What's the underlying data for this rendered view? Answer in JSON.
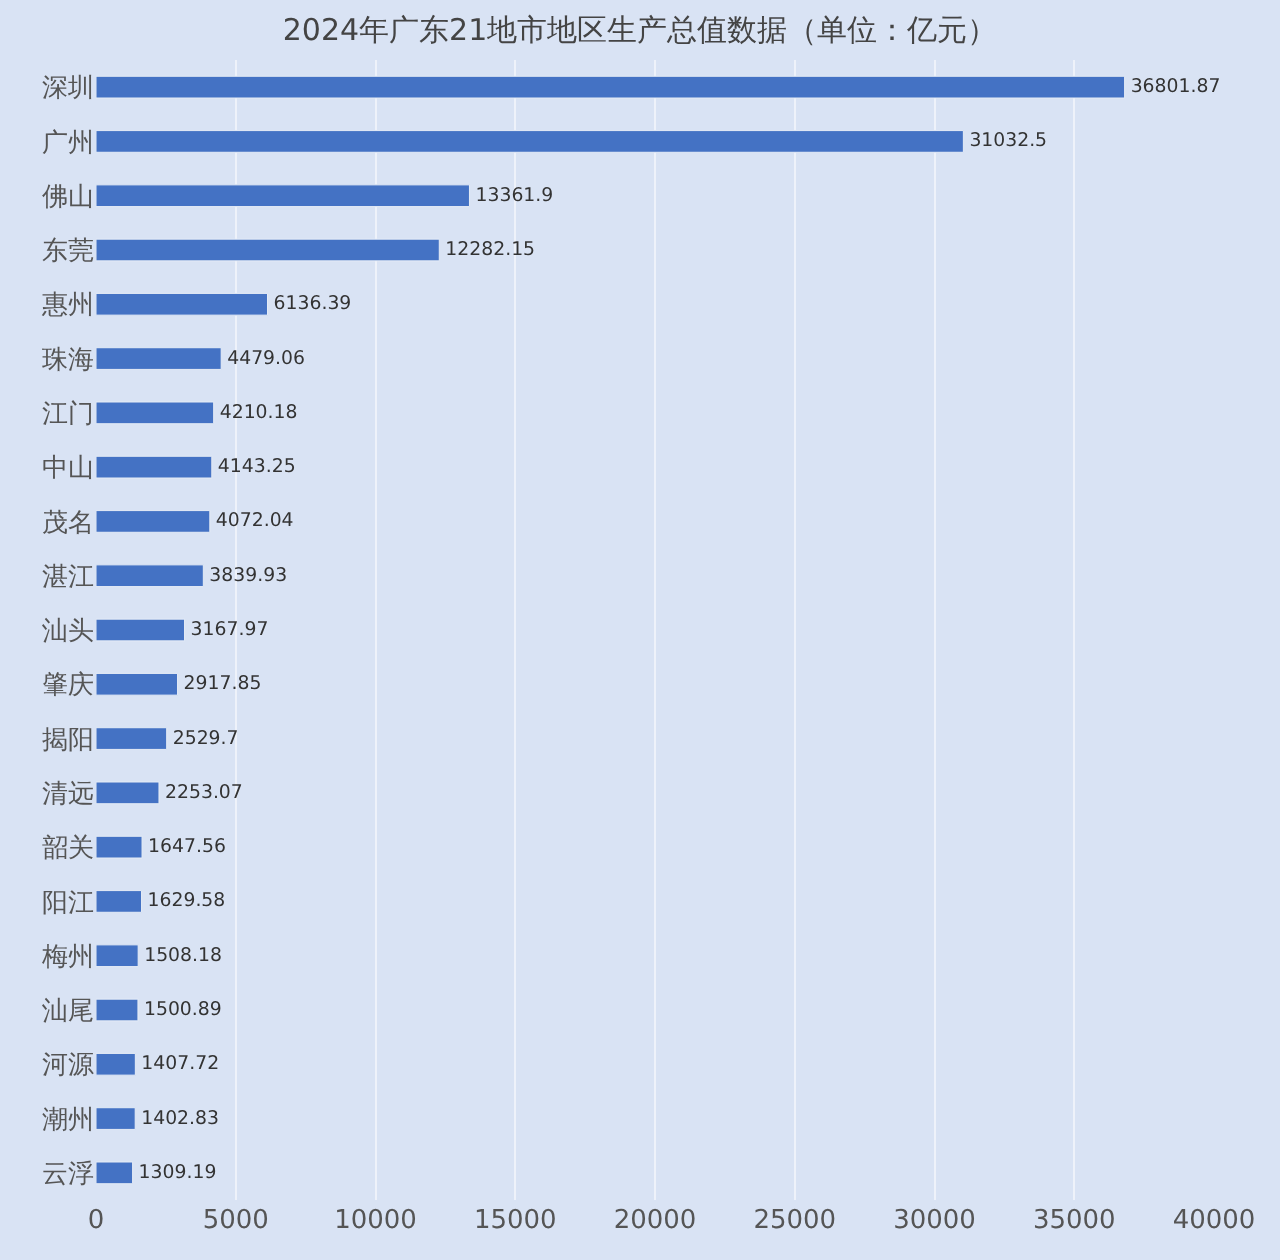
{
  "chart_data": {
    "type": "bar",
    "orientation": "horizontal",
    "title": "2024年广东21地市地区生产总值数据（单位：亿元）",
    "categories": [
      "深圳",
      "广州",
      "佛山",
      "东莞",
      "惠州",
      "珠海",
      "江门",
      "中山",
      "茂名",
      "湛江",
      "汕头",
      "肇庆",
      "揭阳",
      "清远",
      "韶关",
      "阳江",
      "梅州",
      "汕尾",
      "河源",
      "潮州",
      "云浮"
    ],
    "values": [
      36801.87,
      31032.5,
      13361.9,
      12282.15,
      6136.39,
      4479.06,
      4210.18,
      4143.25,
      4072.04,
      3839.93,
      3167.97,
      2917.85,
      2529.7,
      2253.07,
      1647.56,
      1629.58,
      1508.18,
      1500.89,
      1407.72,
      1402.83,
      1309.19
    ],
    "color": "#4472c4",
    "xlim": [
      0,
      40000
    ],
    "xticks": [
      0,
      5000,
      10000,
      15000,
      20000,
      25000,
      30000,
      35000,
      40000
    ],
    "grid": "x",
    "data_labels": true
  }
}
